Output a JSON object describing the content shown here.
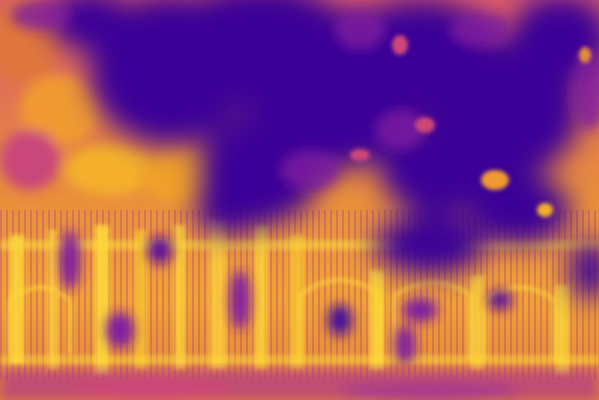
{
  "image": {
    "colormap": "plasma",
    "palette": {
      "deep": "#3b0597",
      "mid": "#7e1fa0",
      "warm": "#cc4778",
      "hot": "#f0a02a",
      "peak": "#fdd83a"
    }
  }
}
